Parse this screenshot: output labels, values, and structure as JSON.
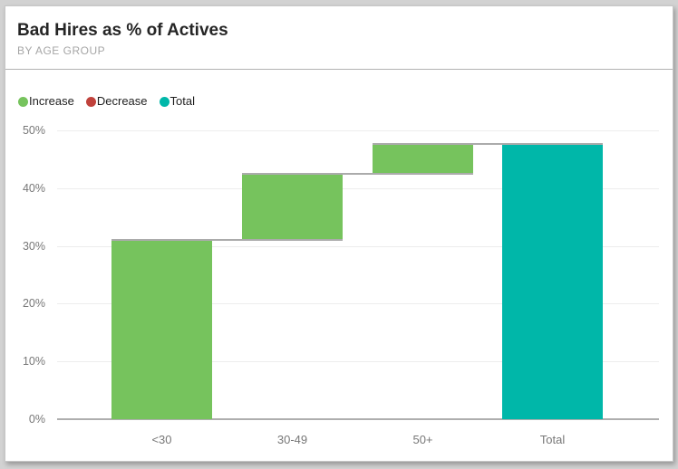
{
  "card": {
    "title": "Bad Hires as % of Actives",
    "subtitle": "BY AGE GROUP"
  },
  "legend": {
    "items": [
      {
        "label": "Increase",
        "color": "#76C35D"
      },
      {
        "label": "Decrease",
        "color": "#C0423C"
      },
      {
        "label": "Total",
        "color": "#00B7A9"
      }
    ]
  },
  "chart_data": {
    "type": "waterfall",
    "title": "Bad Hires as % of Actives",
    "subtitle": "BY AGE GROUP",
    "categories": [
      "<30",
      "30-49",
      "50+",
      "Total"
    ],
    "bars": [
      {
        "category": "<30",
        "role": "increase",
        "start": 0,
        "end": 30.8,
        "delta": 30.8
      },
      {
        "category": "30-49",
        "role": "increase",
        "start": 30.8,
        "end": 42.3,
        "delta": 11.5
      },
      {
        "category": "50+",
        "role": "increase",
        "start": 42.3,
        "end": 47.5,
        "delta": 5.2
      },
      {
        "category": "Total",
        "role": "total",
        "start": 0,
        "end": 47.5,
        "delta": 47.5
      }
    ],
    "y_ticks": [
      {
        "label": "0%",
        "value": 0
      },
      {
        "label": "10%",
        "value": 10
      },
      {
        "label": "20%",
        "value": 20
      },
      {
        "label": "30%",
        "value": 30
      },
      {
        "label": "40%",
        "value": 40
      },
      {
        "label": "50%",
        "value": 50
      }
    ],
    "ylim": [
      0,
      52
    ],
    "grid": true,
    "legend_position": "top-left",
    "legend_entries": [
      "Increase",
      "Decrease",
      "Total"
    ],
    "colors": {
      "increase": "#76C35D",
      "decrease": "#C0423C",
      "total": "#00B7A9",
      "connector": "#ABABAB",
      "gridline": "#EDEDED",
      "axis_line": "#AEAEAE",
      "tick_label": "#777777",
      "title_text": "#252525",
      "subtitle_text": "#A6A6A6"
    }
  }
}
